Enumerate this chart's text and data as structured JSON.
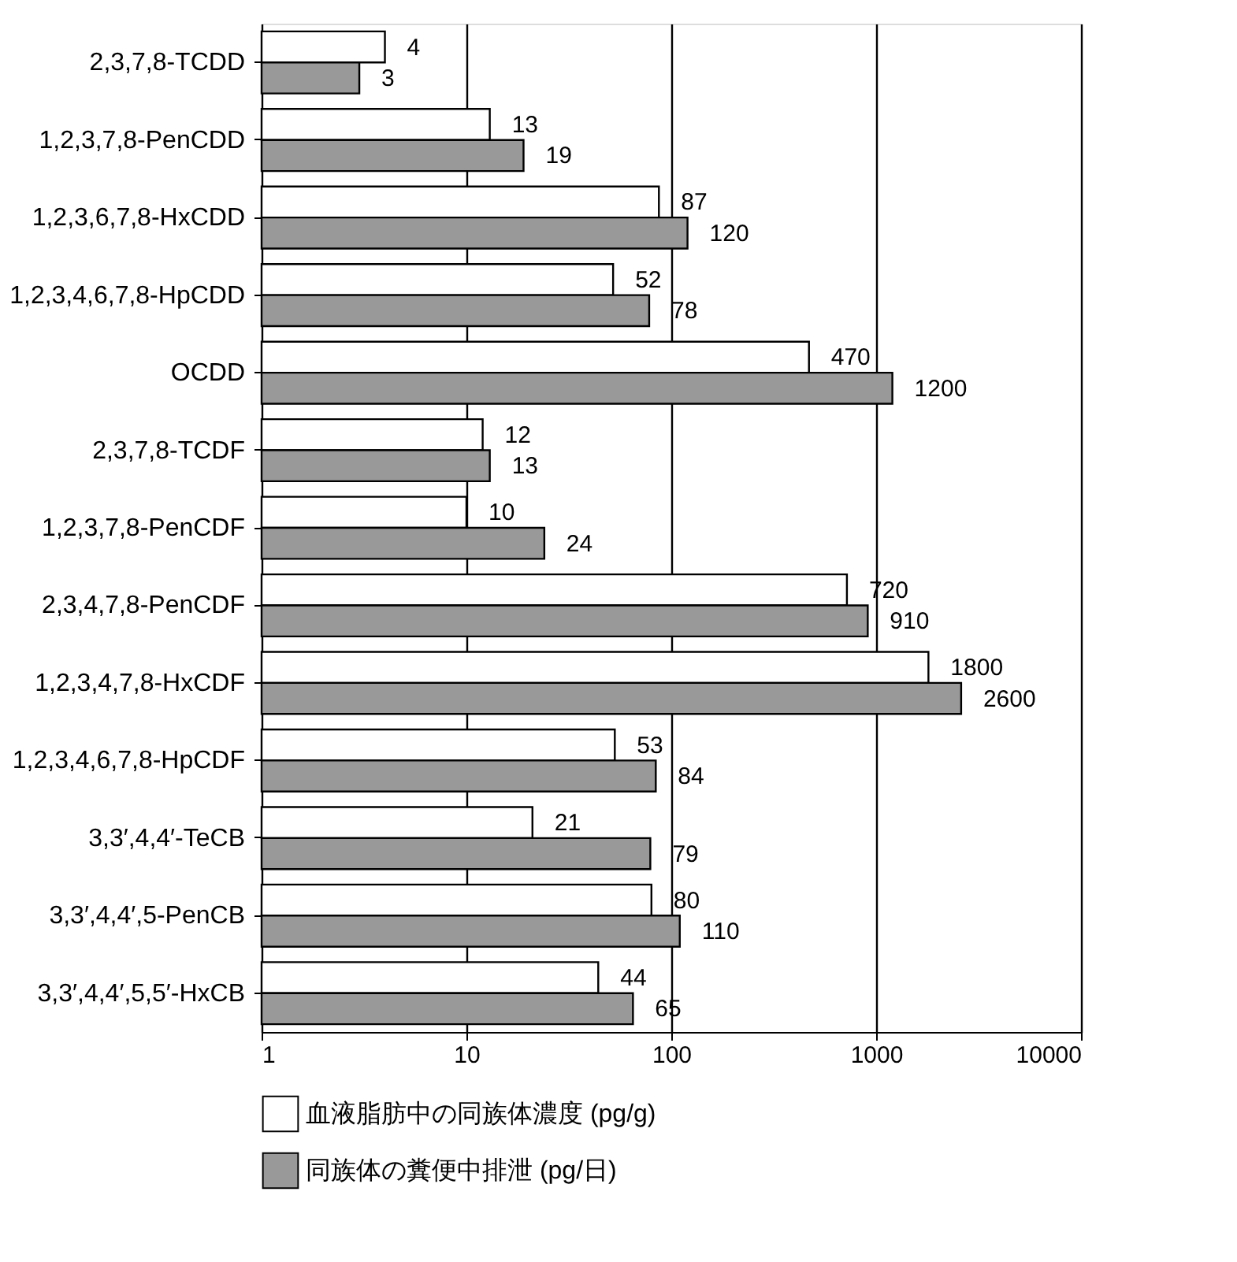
{
  "chart_data": {
    "type": "bar",
    "orientation": "horizontal",
    "categories": [
      "2,3,7,8-TCDD",
      "1,2,3,7,8-PenCDD",
      "1,2,3,6,7,8-HxCDD",
      "1,2,3,4,6,7,8-HpCDD",
      "OCDD",
      "2,3,7,8-TCDF",
      "1,2,3,7,8-PenCDF",
      "2,3,4,7,8-PenCDF",
      "1,2,3,4,7,8-HxCDF",
      "1,2,3,4,6,7,8-HpCDF",
      "3,3′,4,4′-TeCB",
      "3,3′,4,4′,5-PenCB",
      "3,3′,4,4′,5,5′-HxCB"
    ],
    "series": [
      {
        "name": "血液脂肪中の同族体濃度 (pg/g)",
        "color": "#ffffff",
        "values": [
          4,
          13,
          87,
          52,
          470,
          12,
          10,
          720,
          1800,
          53,
          21,
          80,
          44
        ]
      },
      {
        "name": "同族体の糞便中排泄 (pg/日)",
        "color": "#999999",
        "values": [
          3,
          19,
          120,
          78,
          1200,
          13,
          24,
          910,
          2600,
          84,
          79,
          110,
          65
        ]
      }
    ],
    "log": "x",
    "xlim": [
      1,
      10000
    ],
    "xticks": [
      1,
      10,
      100,
      1000,
      10000
    ],
    "grid": "x",
    "legend": "bottom",
    "data_labels": true
  }
}
